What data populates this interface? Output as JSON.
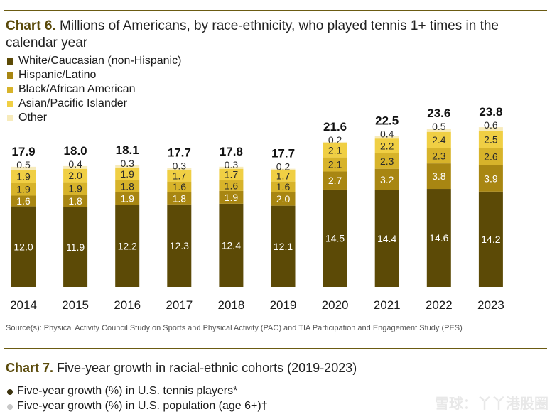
{
  "chart6": {
    "title_bold": "Chart 6.",
    "title_rest": " Millions of Americans, by race-ethnicity, who played tennis 1+ times in the calendar year"
  },
  "chart_data": {
    "type": "bar",
    "stacked": true,
    "categories": [
      "2014",
      "2015",
      "2016",
      "2017",
      "2018",
      "2019",
      "2020",
      "2021",
      "2022",
      "2023"
    ],
    "totals": [
      "17.9",
      "18.0",
      "18.1",
      "17.7",
      "17.8",
      "17.7",
      "21.6",
      "22.5",
      "23.6",
      "23.8"
    ],
    "series": [
      {
        "name": "White/Caucasian (non-Hispanic)",
        "color": "#5c4a06",
        "values": [
          12.0,
          11.9,
          12.2,
          12.3,
          12.4,
          12.1,
          14.5,
          14.4,
          14.6,
          14.2
        ]
      },
      {
        "name": "Hispanic/Latino",
        "color": "#a88612",
        "values": [
          1.6,
          1.8,
          1.9,
          1.8,
          1.9,
          2.0,
          2.7,
          3.2,
          3.8,
          3.9
        ]
      },
      {
        "name": "Black/African American",
        "color": "#d7b32a",
        "values": [
          1.9,
          1.9,
          1.8,
          1.6,
          1.6,
          1.6,
          2.1,
          2.3,
          2.3,
          2.6
        ]
      },
      {
        "name": "Asian/Pacific Islander",
        "color": "#f0cf44",
        "values": [
          1.9,
          2.0,
          1.9,
          1.7,
          1.7,
          1.7,
          2.1,
          2.2,
          2.4,
          2.5
        ]
      },
      {
        "name": "Other",
        "color": "#f7ebbb",
        "values": [
          0.5,
          0.4,
          0.3,
          0.3,
          0.3,
          0.2,
          0.2,
          0.4,
          0.5,
          0.6
        ]
      }
    ],
    "ylim": [
      0,
      27
    ],
    "grid": false,
    "legend": "top-left"
  },
  "source": "Source(s): Physical Activity Council Study on Sports and Physical Activity (PAC) and TIA Participation and Engagement Study (PES)",
  "chart7": {
    "title_bold": "Chart 7.",
    "title_rest": " Five-year growth in racial-ethnic cohorts (2019-2023)",
    "legend": [
      {
        "label": "Five-year growth (%) in U.S. tennis players*",
        "color": "#3d3410"
      },
      {
        "label": "Five-year growth (%) in U.S. population (age 6+)†",
        "color": "#c8c8c8"
      }
    ]
  },
  "watermark": "雪球：丫丫港股圈"
}
